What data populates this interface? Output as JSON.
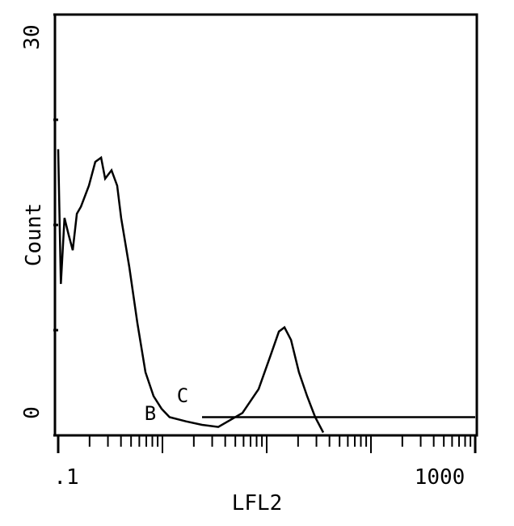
{
  "chart_data": {
    "type": "line",
    "xlabel": "LFL2",
    "ylabel": "Count",
    "xscale": "log",
    "xlim": [
      0.1,
      1000
    ],
    "ylim": [
      0,
      30
    ],
    "xticks": [
      {
        "value": 0.1,
        "label": ".1"
      },
      {
        "value": 1000,
        "label": "1000"
      }
    ],
    "xminor": [
      0.2,
      0.3,
      0.4,
      0.5,
      0.6,
      0.7,
      0.8,
      0.9,
      1,
      2,
      3,
      4,
      5,
      6,
      7,
      8,
      9,
      10,
      20,
      30,
      40,
      50,
      60,
      70,
      80,
      90,
      100,
      200,
      300,
      400,
      500,
      600,
      700,
      800,
      900
    ],
    "yticks": [
      0,
      30
    ],
    "yminor": [
      7.5,
      15,
      22.5
    ],
    "annotations": [
      "B",
      "C"
    ],
    "series": [
      {
        "color": "#000000",
        "x": [
          0.1,
          0.106,
          0.115,
          0.126,
          0.138,
          0.151,
          0.165,
          0.197,
          0.227,
          0.258,
          0.282,
          0.325,
          0.368,
          0.402,
          0.481,
          0.575,
          0.687,
          0.822,
          0.98,
          1.17,
          1.68,
          2.4,
          3.43,
          5.85,
          8.36,
          10.9,
          13.1,
          14.8,
          17.1,
          20.4,
          24.4,
          29.2,
          34.9
        ],
        "values": [
          20.4,
          10.8,
          15.5,
          14.3,
          13.2,
          15.8,
          16.3,
          17.8,
          19.5,
          19.8,
          18.3,
          18.9,
          17.8,
          15.5,
          12,
          8,
          4.5,
          2.8,
          1.9,
          1.3,
          1,
          0.75,
          0.6,
          1.6,
          3.3,
          5.7,
          7.4,
          7.7,
          6.8,
          4.5,
          2.8,
          1.3,
          0.2
        ]
      },
      {
        "color": "#000000",
        "x": [
          2.4,
          1000
        ],
        "values": [
          1.3,
          1.3
        ]
      }
    ]
  }
}
